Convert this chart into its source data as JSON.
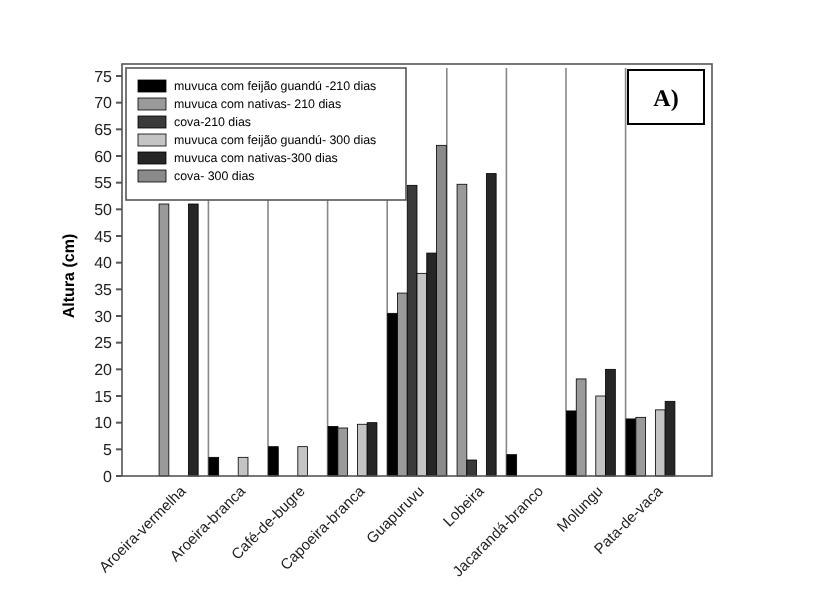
{
  "chart_data": {
    "type": "bar",
    "ylabel": "Altura (cm)",
    "annotations": [
      "A)"
    ],
    "categories": [
      "Aroeira-vermelha",
      "Aroeira-branca",
      "Café-de-bugre",
      "Capoeira-branca",
      "Guapuruvu",
      "Lobeira",
      "Jacarandá-branco",
      "Molungu",
      "Pata-de-vaca"
    ],
    "series": [
      {
        "name": "muvuca com feijão guandú -210 dias",
        "color": "#000000",
        "values": [
          null,
          3.5,
          5.5,
          9.3,
          30.5,
          null,
          4,
          12.2,
          10.7
        ]
      },
      {
        "name": "muvuca com nativas- 210 dias",
        "color": "#9a9a9a",
        "values": [
          51,
          null,
          null,
          9,
          34.3,
          54.7,
          null,
          18.2,
          11
        ]
      },
      {
        "name": "cova-210 dias",
        "color": "#3a3a3a",
        "values": [
          null,
          null,
          null,
          null,
          54.5,
          3,
          null,
          null,
          null
        ]
      },
      {
        "name": "muvuca com feijão guandú- 300 dias",
        "color": "#c4c4c4",
        "values": [
          null,
          3.5,
          5.5,
          9.7,
          38,
          null,
          null,
          15,
          12.4
        ]
      },
      {
        "name": "muvuca com nativas-300 dias",
        "color": "#262626",
        "values": [
          51,
          null,
          null,
          10,
          41.8,
          56.7,
          null,
          20,
          14
        ]
      },
      {
        "name": "cova- 300 dias",
        "color": "#8a8a8a",
        "values": [
          null,
          null,
          null,
          null,
          62,
          null,
          null,
          null,
          null
        ]
      }
    ],
    "ylim": [
      0,
      75
    ],
    "yticks": [
      0,
      5,
      10,
      15,
      20,
      25,
      30,
      35,
      40,
      45,
      50,
      55,
      60,
      65,
      70,
      75
    ],
    "grid": "x",
    "legend": "top left"
  }
}
